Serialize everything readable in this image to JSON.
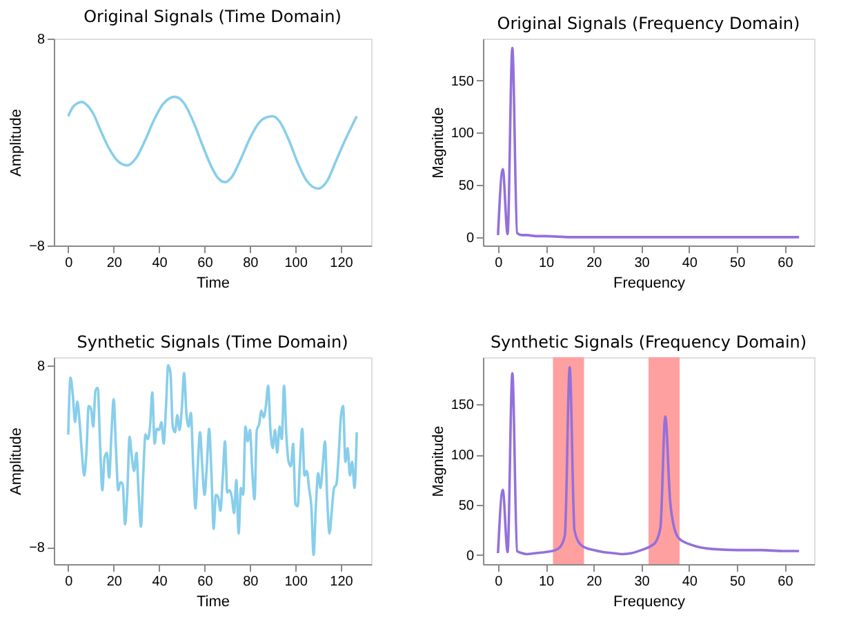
{
  "chart_data": [
    {
      "type": "line",
      "title": "Original Signals (Time Domain)",
      "xlabel": "Time",
      "ylabel": "Amplitude",
      "xlim": [
        -6.35,
        133.35
      ],
      "xticks": [
        0,
        20,
        40,
        60,
        80,
        100,
        120
      ],
      "ylim": [
        -8,
        8
      ],
      "yticks": [
        -8,
        8
      ],
      "grid": false,
      "legend": false,
      "series": [
        {
          "color": "#87ceeb",
          "x": [
            0,
            2,
            4,
            6,
            8,
            11,
            14,
            18,
            22,
            26,
            30,
            34,
            38,
            42,
            47,
            51,
            55,
            59,
            63,
            66,
            69,
            72,
            76,
            80,
            84,
            87,
            90,
            93,
            97,
            101,
            105,
            110,
            114,
            118,
            122,
            127
          ],
          "values": [
            2,
            2.7,
            3,
            3.1,
            2.9,
            2.2,
            1,
            -0.5,
            -1.5,
            -1.8,
            -1.2,
            0.2,
            1.8,
            3,
            3.5,
            3,
            1.6,
            -0.2,
            -1.9,
            -2.8,
            -3.1,
            -2.7,
            -1.3,
            0.3,
            1.5,
            1.9,
            2,
            1.6,
            0.2,
            -1.6,
            -3,
            -3.6,
            -3,
            -1.4,
            0.2,
            2
          ]
        }
      ]
    },
    {
      "type": "line",
      "title": "Original Signals (Frequency Domain)",
      "xlabel": "Frequency",
      "ylabel": "Magnitude",
      "xlim": [
        -3.15,
        66.15
      ],
      "xticks": [
        0,
        10,
        20,
        30,
        40,
        50,
        60
      ],
      "ylim": [
        -8,
        190
      ],
      "yticks": [
        0,
        50,
        100,
        150
      ],
      "grid": false,
      "legend": false,
      "series": [
        {
          "color": "#9370db",
          "x": [
            0,
            1,
            2,
            3,
            4,
            5,
            6,
            8,
            10,
            15,
            20,
            30,
            40,
            50,
            63
          ],
          "values": [
            2,
            65,
            3,
            181,
            4,
            2,
            2,
            1,
            1,
            0,
            0,
            0,
            0,
            0,
            0
          ]
        }
      ]
    },
    {
      "type": "line",
      "title": "Synthetic Signals (Time Domain)",
      "xlabel": "Time",
      "ylabel": "Amplitude",
      "xlim": [
        -6.35,
        133.35
      ],
      "xticks": [
        0,
        20,
        40,
        60,
        80,
        100,
        120
      ],
      "ylim": [
        -9.5,
        8.7
      ],
      "yticks": [
        -8,
        8
      ],
      "grid": false,
      "legend": false,
      "series": [
        {
          "color": "#87ceeb",
          "x": [
            0,
            1,
            2,
            3,
            4,
            5,
            6,
            7,
            8,
            9,
            10,
            11,
            12,
            13,
            14,
            15,
            16,
            17,
            18,
            19,
            20,
            21,
            22,
            23,
            24,
            25,
            26,
            27,
            28,
            29,
            30,
            31,
            32,
            33,
            34,
            35,
            36,
            37,
            38,
            39,
            40,
            41,
            42,
            43,
            44,
            45,
            46,
            47,
            48,
            49,
            50,
            51,
            52,
            53,
            54,
            55,
            56,
            57,
            58,
            59,
            60,
            61,
            62,
            63,
            64,
            65,
            66,
            67,
            68,
            69,
            70,
            71,
            72,
            73,
            74,
            75,
            76,
            77,
            78,
            79,
            80,
            81,
            82,
            83,
            84,
            85,
            86,
            87,
            88,
            89,
            90,
            91,
            92,
            93,
            94,
            95,
            96,
            97,
            98,
            99,
            100,
            101,
            102,
            103,
            104,
            105,
            106,
            107,
            108,
            109,
            110,
            111,
            112,
            113,
            114,
            115,
            116,
            117,
            118,
            119,
            120,
            121,
            122,
            123,
            124,
            125,
            126,
            127
          ],
          "values": [
            1.9,
            6.9,
            5.4,
            3.0,
            4.8,
            3.0,
            0.3,
            -1.7,
            0.3,
            4.4,
            4.2,
            2.6,
            5.8,
            6.0,
            1.1,
            -3.0,
            -0.1,
            0.3,
            -1.9,
            1.9,
            5.0,
            0.7,
            -3.0,
            -2.3,
            -2.5,
            -6.0,
            -3.2,
            1.7,
            -0.1,
            -1.3,
            0.3,
            -3.4,
            -6.2,
            -1.7,
            1.9,
            1.5,
            2.6,
            5.6,
            1.1,
            2.4,
            2.3,
            3.0,
            1.1,
            4.2,
            8.0,
            7.3,
            2.6,
            2.1,
            3.6,
            2.3,
            4.2,
            7.3,
            3.8,
            2.6,
            3.8,
            -0.9,
            -4.6,
            -0.9,
            2.1,
            -0.9,
            -3.4,
            -0.9,
            2.4,
            -1.3,
            -6.4,
            -3.4,
            -3.6,
            -4.8,
            -1.9,
            1.3,
            -3.2,
            -3.0,
            -3.6,
            -5.0,
            -2.1,
            -6.8,
            -2.8,
            -3.4,
            2.6,
            1.3,
            2.3,
            -1.3,
            -3.8,
            2.3,
            2.8,
            4.0,
            3.4,
            4.4,
            6.2,
            2.3,
            0.7,
            2.3,
            0.3,
            2.6,
            1.5,
            6.2,
            1.9,
            -0.5,
            -0.9,
            1.1,
            -4.2,
            -4.4,
            -0.5,
            2.4,
            -1.7,
            -1.3,
            -2.8,
            -4.4,
            -8.7,
            -4.4,
            -1.5,
            -2.8,
            -0.9,
            1.3,
            -3.8,
            -6.8,
            -4.8,
            -2.8,
            -2.5,
            -0.1,
            3.4,
            4.4,
            -0.5,
            0.7,
            -1.7,
            -0.5,
            -2.8,
            2.1
          ]
        }
      ]
    },
    {
      "type": "line",
      "title": "Synthetic Signals (Frequency Domain)",
      "xlabel": "Frequency",
      "ylabel": "Magnitude",
      "xlim": [
        -3.15,
        66.15
      ],
      "xticks": [
        0,
        10,
        20,
        30,
        40,
        50,
        60
      ],
      "ylim": [
        -9,
        197
      ],
      "yticks": [
        0,
        50,
        100,
        150
      ],
      "grid": false,
      "legend": false,
      "bands": [
        {
          "axis": "x",
          "from": 11.5,
          "to": 18,
          "color": "#ffa0a0"
        },
        {
          "axis": "x",
          "from": 31.5,
          "to": 38,
          "color": "#ffa0a0"
        }
      ],
      "series": [
        {
          "color": "#9370db",
          "x": [
            0,
            1,
            2,
            3,
            4,
            5,
            6,
            8,
            10,
            12,
            13,
            14,
            15,
            16,
            17,
            18,
            20,
            22,
            24,
            26,
            28,
            30,
            32,
            33,
            34,
            35,
            36,
            37,
            38,
            40,
            42,
            45,
            50,
            55,
            60,
            63
          ],
          "values": [
            2,
            65,
            3,
            181,
            4,
            2,
            1,
            2,
            3,
            5,
            8,
            20,
            187,
            25,
            12,
            8,
            5,
            3,
            2,
            1,
            2,
            5,
            9,
            13,
            28,
            138,
            55,
            25,
            16,
            11,
            8,
            6,
            5,
            5,
            4,
            4
          ]
        }
      ]
    }
  ]
}
